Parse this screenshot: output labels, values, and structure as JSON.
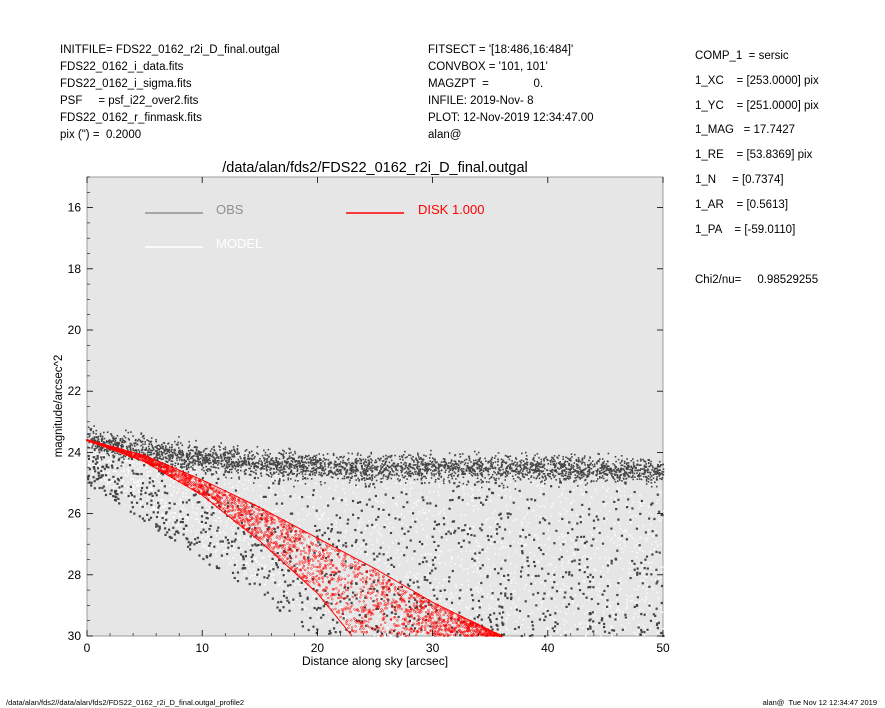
{
  "header_left": [
    "INITFILE= FDS22_0162_r2i_D_final.outgal",
    "FDS22_0162_i_data.fits",
    "FDS22_0162_i_sigma.fits",
    "PSF     = psf_i22_over2.fits",
    "FDS22_0162_r_finmask.fits",
    "pix (\") =  0.2000"
  ],
  "header_mid": [
    "FITSECT = '[18:486,16:484]'",
    "CONVBOX = '101, 101'",
    "MAGZPT  =              0.",
    "INFILE: 2019-Nov- 8",
    "PLOT: 12-Nov-2019 12:34:47.00",
    "alan@"
  ],
  "params": [
    "COMP_1  = sersic",
    "1_XC    = [253.0000] pix",
    "1_YC    = [251.0000] pix",
    "1_MAG   = 17.7427",
    "1_RE    = [53.8369] pix",
    "1_N     = [0.7374]",
    "1_AR    = [0.5613]",
    "1_PA    = [-59.0110]"
  ],
  "chi2": "Chi2/nu=     0.98529255",
  "footer_left": "/data/alan/fds2//data/alan/fds2/FDS22_0162_r2i_D_final.outgal_profile2",
  "footer_right": "alan@  Tue Nov 12 12:34:47 2019",
  "colors": {
    "plot_bg": "#e6e6e6",
    "obs": "#444444",
    "model": "#ffffff",
    "disk": "#ff0000",
    "legend_obs": "#909090"
  },
  "chart_data": {
    "type": "scatter",
    "title": "/data/alan/fds2/FDS22_0162_r2i_D_final.outgal",
    "xlabel": "Distance along sky [arcsec]",
    "ylabel": "magnitude/arcsec^2",
    "xlim": [
      0,
      50
    ],
    "ylim": [
      30,
      15
    ],
    "y_inverted": true,
    "xticks": [
      0,
      10,
      20,
      30,
      40,
      50
    ],
    "yticks": [
      16,
      18,
      20,
      22,
      24,
      26,
      28,
      30
    ],
    "legend": [
      {
        "label": "OBS",
        "color": "#909090"
      },
      {
        "label": "MODEL",
        "color": "#ffffff"
      },
      {
        "label": "DISK  1.000",
        "color": "#ff0000"
      }
    ],
    "series": [
      {
        "name": "OBS",
        "description_points": [
          [
            0,
            23.6
          ],
          [
            5,
            23.9
          ],
          [
            10,
            24.2
          ],
          [
            20,
            24.5
          ],
          [
            30,
            24.5
          ],
          [
            40,
            24.5
          ],
          [
            50,
            24.6
          ]
        ],
        "scatter_range_bottom": [
          [
            0,
            24.0
          ],
          [
            10,
            26.5
          ],
          [
            20,
            29.0
          ],
          [
            30,
            30.0
          ],
          [
            50,
            30.0
          ]
        ]
      },
      {
        "name": "DISK  1.000",
        "upper_edge": [
          [
            0,
            23.6
          ],
          [
            5,
            24.3
          ],
          [
            10,
            25.4
          ],
          [
            15,
            26.9
          ],
          [
            20,
            28.6
          ],
          [
            23,
            30.0
          ]
        ],
        "lower_edge": [
          [
            0,
            23.6
          ],
          [
            5,
            24.1
          ],
          [
            10,
            24.9
          ],
          [
            15,
            25.8
          ],
          [
            20,
            26.8
          ],
          [
            25,
            27.8
          ],
          [
            30,
            28.9
          ],
          [
            36,
            30.0
          ]
        ]
      }
    ]
  }
}
